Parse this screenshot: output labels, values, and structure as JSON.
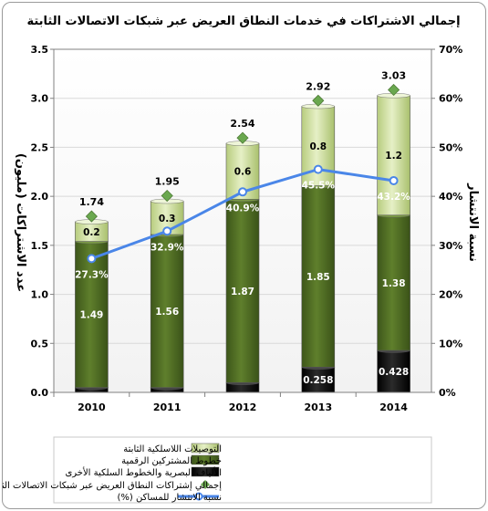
{
  "chart_data": {
    "type": "bar",
    "title": "إجمالي الاشتراكات في خدمات النطاق العريض عبر شبكات الاتصالات الثابتة",
    "ylabel": "عدد الاشتراكات (مليون)",
    "y2label": "نسبة الانتشار",
    "categories": [
      "2010",
      "2011",
      "2012",
      "2013",
      "2014"
    ],
    "y_ticks": [
      "0.0",
      "0.5",
      "1.0",
      "1.5",
      "2.0",
      "2.5",
      "3.0",
      "3.5"
    ],
    "y2_ticks": [
      "0%",
      "10%",
      "20%",
      "30%",
      "40%",
      "50%",
      "60%",
      "70%"
    ],
    "ylim": [
      0,
      3.5
    ],
    "y2lim": [
      0,
      70
    ],
    "series": [
      {
        "name": "الألياف البصرية والخطوط السلكية الأخرى",
        "type": "bar",
        "color": "#111111",
        "values": [
          0.05,
          0.05,
          0.1,
          0.258,
          0.428
        ],
        "labels": [
          "",
          "",
          "",
          "0.258",
          "0.428"
        ]
      },
      {
        "name": "خطوط المشتركين الرقمية",
        "type": "bar",
        "color": "#4e6b23",
        "values": [
          1.49,
          1.56,
          1.87,
          1.85,
          1.38
        ],
        "labels": [
          "1.49",
          "1.56",
          "1.87",
          "1.85",
          "1.38"
        ]
      },
      {
        "name": "التوصيلات اللاسلكية الثابتة",
        "type": "bar",
        "color": "#d4e4a6",
        "values": [
          0.2,
          0.34,
          0.57,
          0.81,
          1.22
        ],
        "labels": [
          "0.2",
          "0.3",
          "0.6",
          "0.8",
          "1.2"
        ]
      },
      {
        "name": "إجمالي إشتراكات النطاق العريض عبر شبكات الاتصالات الثابتة",
        "type": "marker",
        "color": "#6aa84f",
        "values": [
          1.74,
          1.95,
          2.54,
          2.92,
          3.03
        ],
        "labels": [
          "1.74",
          "1.95",
          "2.54",
          "2.92",
          "3.03"
        ]
      },
      {
        "name": "نسبة الانتشار للمساكن (%)",
        "type": "line",
        "axis": "right",
        "color": "#4a86e8",
        "values": [
          27.3,
          32.9,
          40.9,
          45.5,
          43.2
        ],
        "labels": [
          "27.3%",
          "32.9%",
          "40.9%",
          "45.5%",
          "43.2%"
        ]
      }
    ],
    "legend": "bottom",
    "grid": true
  }
}
